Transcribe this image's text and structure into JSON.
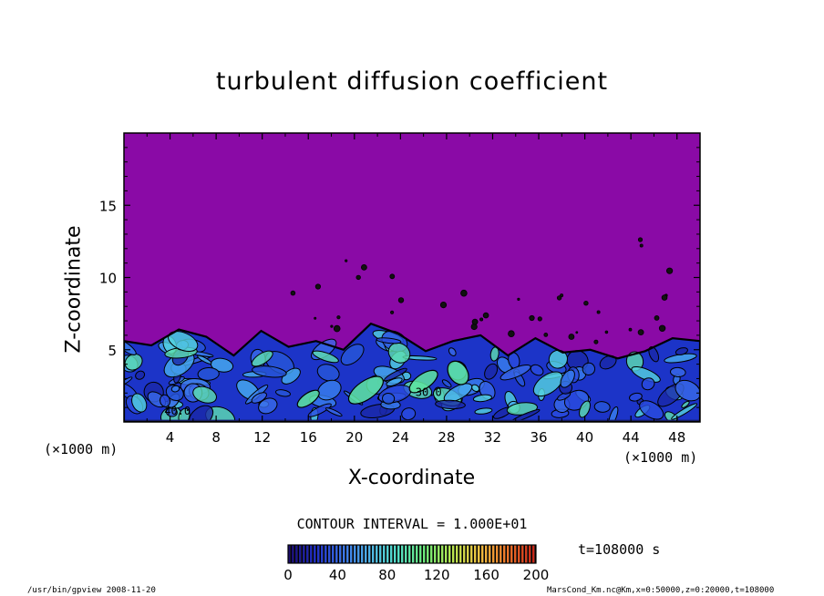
{
  "chart_data": {
    "type": "heatmap",
    "title": "turbulent diffusion coefficient",
    "xlabel": "X-coordinate",
    "ylabel": "Z-coordinate",
    "x_unit_label": "(×1000 m)",
    "xlim": [
      0,
      50
    ],
    "ylim": [
      0,
      20
    ],
    "x_ticks": [
      4,
      8,
      12,
      16,
      20,
      24,
      28,
      32,
      36,
      40,
      44,
      48
    ],
    "y_ticks": [
      5,
      10,
      15
    ],
    "contour_interval": "CONTOUR INTERVAL = 1.000E+01",
    "contour_labels": [
      "40.0",
      "30.0"
    ],
    "colorbar": {
      "range": [
        0,
        200
      ],
      "ticks": [
        0,
        40,
        80,
        120,
        160,
        200
      ],
      "colors": [
        "#1a0a6e",
        "#1f2fc8",
        "#3a74e8",
        "#4fb4e6",
        "#52e0c8",
        "#6ce878",
        "#b8e850",
        "#f0c040",
        "#f07828",
        "#c82818"
      ]
    },
    "background_color": "#8a0aa6",
    "boundary_layer_top": [
      5.6,
      5.3,
      6.4,
      5.9,
      4.6,
      6.3,
      5.2,
      5.6,
      5.0,
      6.8,
      6.1,
      4.9,
      5.6,
      6.0,
      4.6,
      5.8,
      4.8,
      5.0,
      4.4,
      4.9,
      5.8,
      5.6
    ]
  },
  "annotations": {
    "time": "t=108000 s",
    "footer_left": "/usr/bin/gpview   2008-11-20",
    "footer_right": "MarsCond_Km.nc@Km,x=0:50000,z=0:20000,t=108000"
  }
}
